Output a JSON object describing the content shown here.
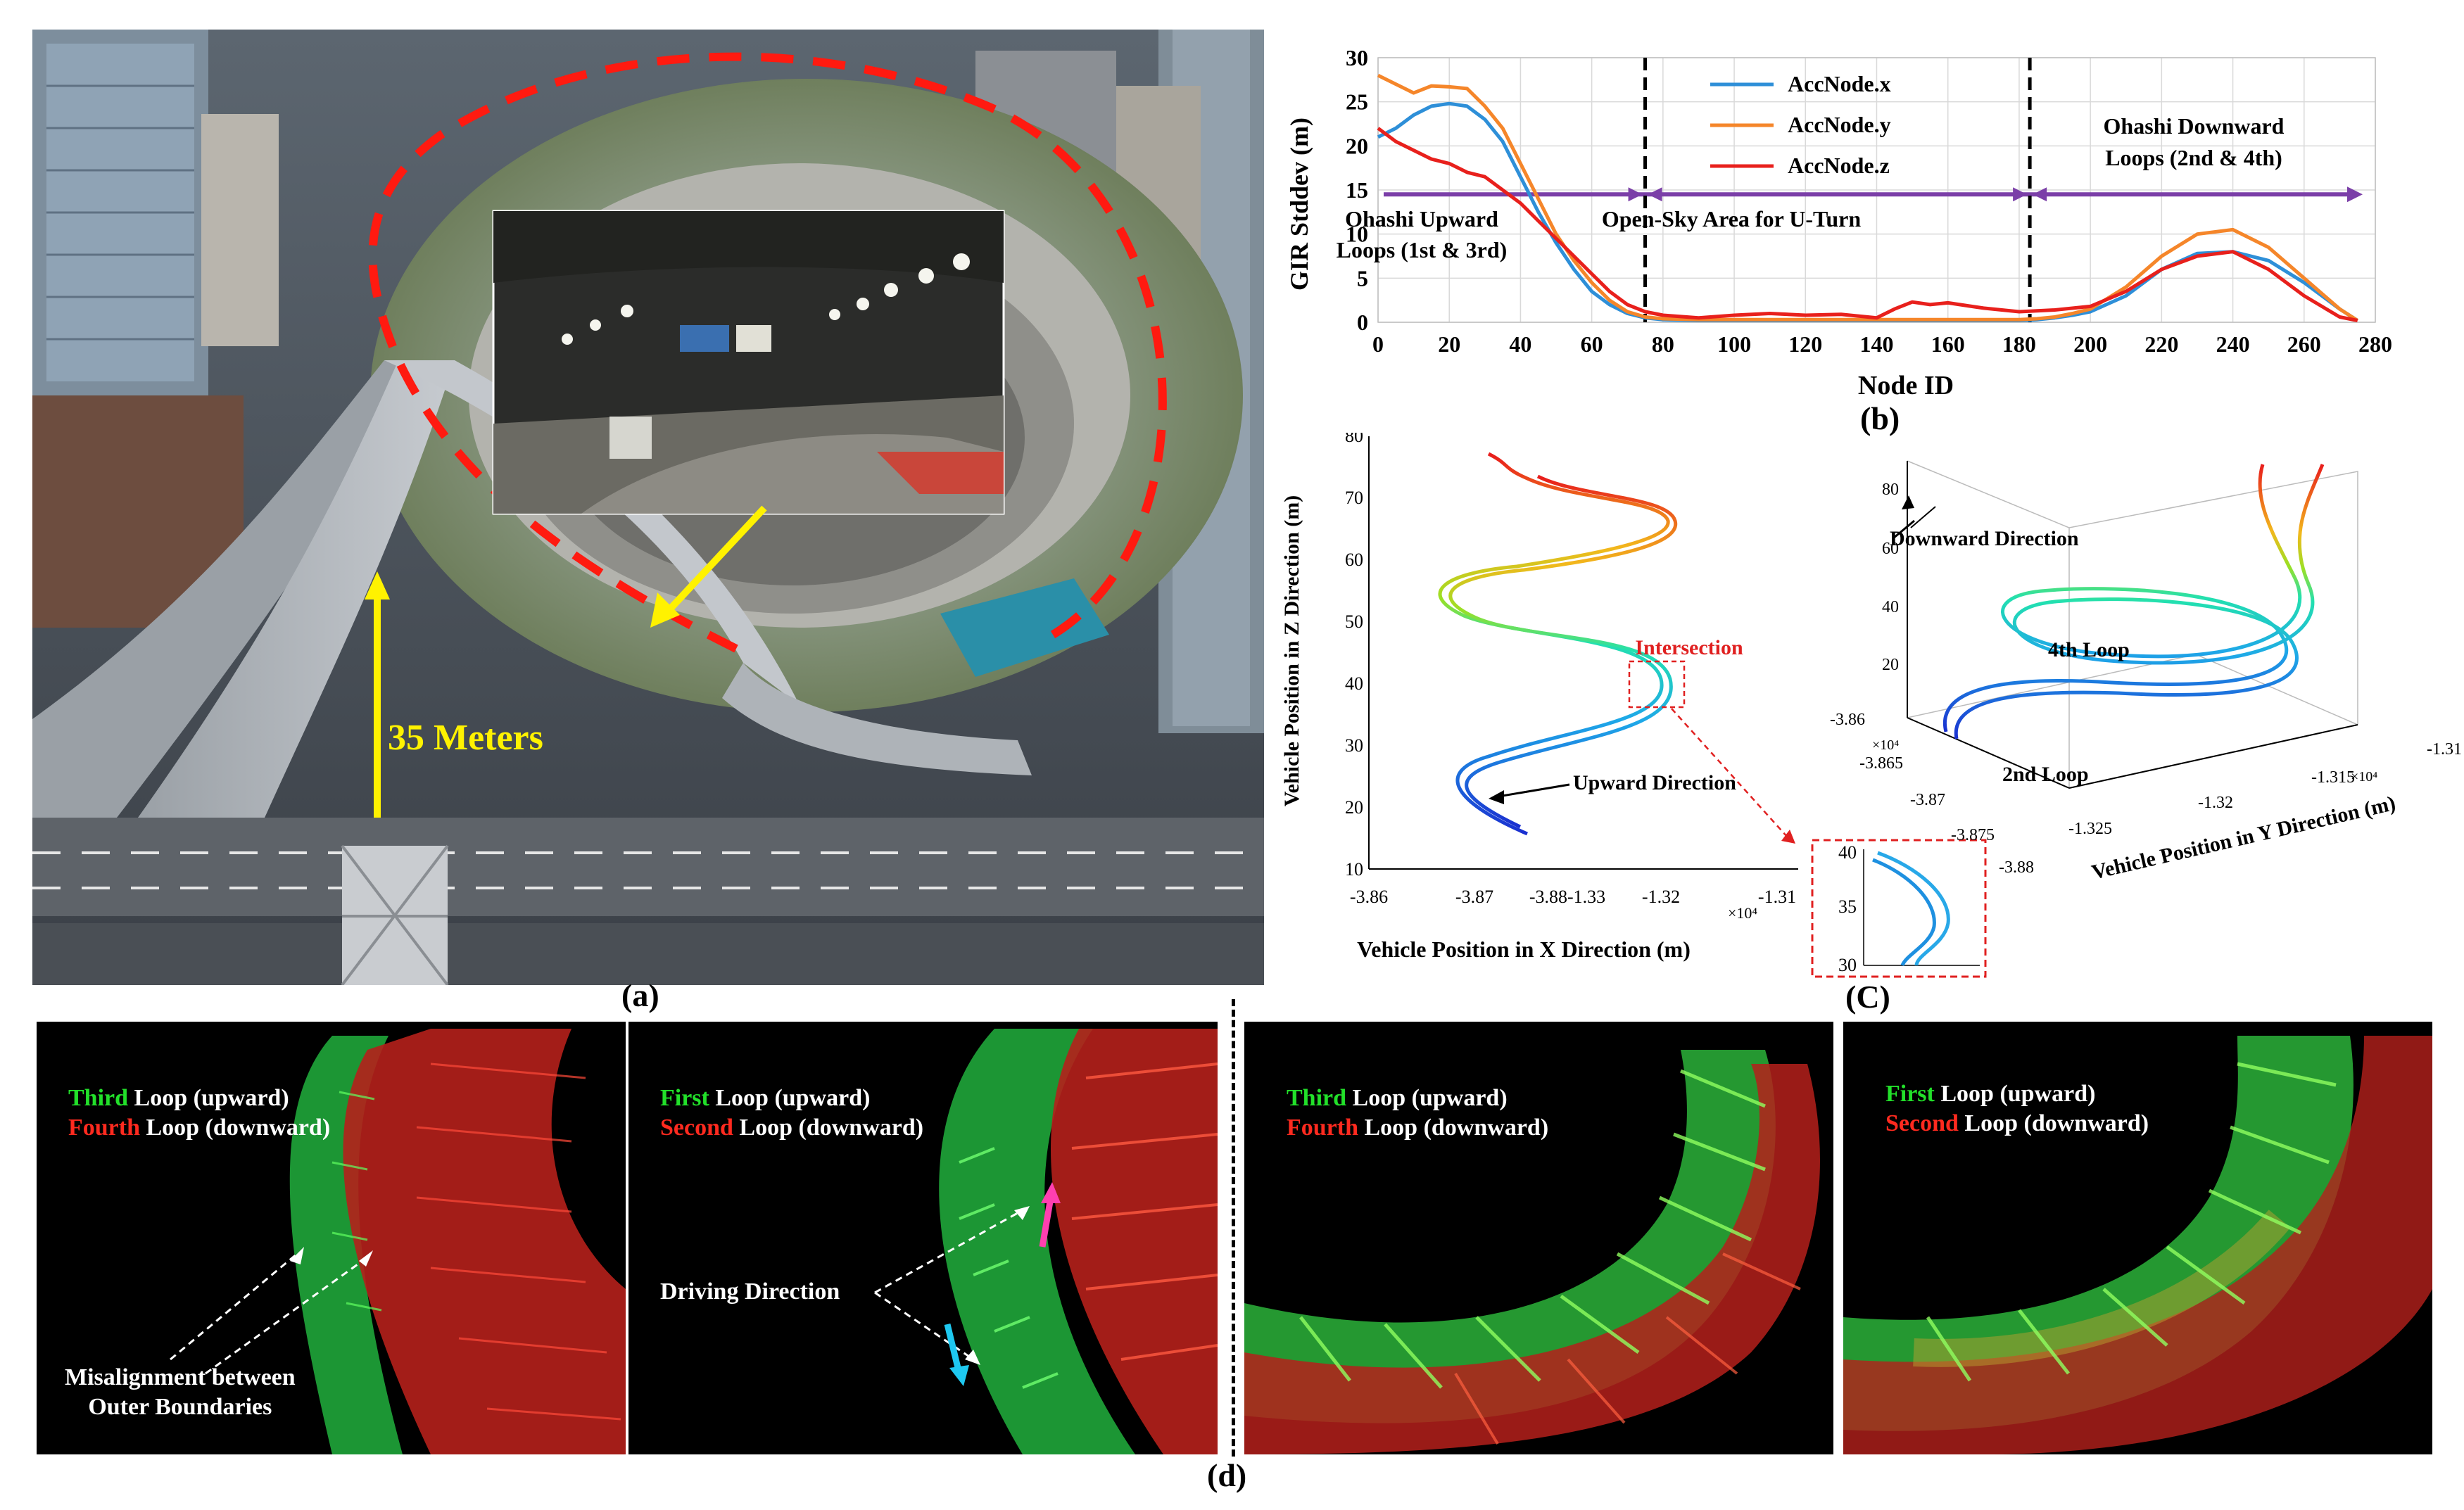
{
  "panel_a": {
    "label": "(a)",
    "height_label": "35 Meters"
  },
  "panel_b": {
    "label": "(b)"
  },
  "panel_c": {
    "label": "(C)",
    "left": {
      "ylabel": "Vehicle Position in Z Direction (m)",
      "xlabel": "Vehicle Position in X Direction (m)",
      "yticks": [
        "10",
        "20",
        "30",
        "40",
        "50",
        "60",
        "70",
        "80"
      ],
      "xticks": [
        "-3.86",
        "-3.87",
        "-3.88-1.33",
        "-1.32",
        "-1.31"
      ],
      "xexp": "×10⁴",
      "intersection": "Intersection",
      "upward": "Upward Direction",
      "inset_yticks": [
        "30",
        "35",
        "40"
      ]
    },
    "right": {
      "zticks": [
        "20",
        "40",
        "60",
        "80"
      ],
      "xticks": [
        "-3.86",
        "-3.865",
        "-3.87",
        "-3.875",
        "-3.88"
      ],
      "xexp": "×10⁴",
      "yticks": [
        "-1.325",
        "-1.32",
        "-1.315",
        "-1.31"
      ],
      "yexp": "×10⁴",
      "ylabel": "Vehicle Position in Y Direction (m)",
      "downward": "Downward Direction",
      "loop4": "4th Loop",
      "loop2": "2nd Loop"
    }
  },
  "panel_d": {
    "label": "(d)",
    "views": [
      {
        "green_word": "Third",
        "green_rest": " Loop (upward)",
        "red_word": "Fourth",
        "red_rest": " Loop (downward)",
        "note1": "Misalignment between",
        "note2": "Outer Boundaries"
      },
      {
        "green_word": "First",
        "green_rest": " Loop (upward)",
        "red_word": "Second",
        "red_rest": " Loop (downward)",
        "note1": "Driving Direction"
      },
      {
        "green_word": "Third",
        "green_rest": " Loop (upward)",
        "red_word": "Fourth",
        "red_rest": " Loop (downward)"
      },
      {
        "green_word": "First",
        "green_rest": " Loop (upward)",
        "red_word": "Second",
        "red_rest": " Loop (downward)"
      }
    ]
  },
  "chart_data": {
    "type": "line",
    "title": "",
    "xlabel": "Node  ID",
    "ylabel": "GIR  Stddev  (m)",
    "xlim": [
      0,
      280
    ],
    "ylim": [
      0,
      30
    ],
    "xticks": [
      0,
      20,
      40,
      60,
      80,
      100,
      120,
      140,
      160,
      180,
      200,
      220,
      240,
      260,
      280
    ],
    "yticks": [
      0,
      5,
      10,
      15,
      20,
      25,
      30
    ],
    "legend": [
      "AccNode.x",
      "AccNode.y",
      "AccNode.z"
    ],
    "series": [
      {
        "name": "AccNode.x",
        "color": "#2e8fd8",
        "x": [
          0,
          5,
          10,
          15,
          20,
          25,
          30,
          35,
          40,
          45,
          50,
          55,
          60,
          65,
          70,
          75,
          80,
          90,
          100,
          120,
          140,
          160,
          180,
          185,
          190,
          195,
          200,
          210,
          220,
          230,
          240,
          250,
          260,
          270,
          275
        ],
        "y": [
          21,
          22,
          23.5,
          24.5,
          24.8,
          24.5,
          23,
          20.5,
          16.5,
          12.5,
          9,
          6,
          3.5,
          2,
          1,
          0.5,
          0.3,
          0.2,
          0.2,
          0.2,
          0.2,
          0.2,
          0.2,
          0.3,
          0.5,
          0.8,
          1.2,
          3,
          6,
          7.8,
          8,
          7,
          4.5,
          1.5,
          0.2
        ]
      },
      {
        "name": "AccNode.y",
        "color": "#f5862a",
        "x": [
          0,
          5,
          10,
          15,
          20,
          25,
          30,
          35,
          40,
          45,
          50,
          55,
          60,
          65,
          70,
          75,
          80,
          90,
          100,
          120,
          140,
          160,
          180,
          185,
          190,
          195,
          200,
          210,
          220,
          230,
          240,
          250,
          260,
          270,
          275
        ],
        "y": [
          28,
          27,
          26,
          26.8,
          26.7,
          26.5,
          24.5,
          22,
          18,
          14,
          10,
          7,
          4.5,
          2.5,
          1.2,
          0.6,
          0.4,
          0.3,
          0.3,
          0.3,
          0.3,
          0.3,
          0.3,
          0.4,
          0.6,
          1,
          1.5,
          4,
          7.5,
          10,
          10.5,
          8.5,
          5,
          1.5,
          0.2
        ]
      },
      {
        "name": "AccNode.z",
        "color": "#e8201c",
        "x": [
          0,
          5,
          10,
          15,
          20,
          25,
          30,
          35,
          40,
          45,
          50,
          55,
          60,
          65,
          70,
          75,
          80,
          90,
          100,
          110,
          120,
          130,
          140,
          145,
          150,
          155,
          160,
          170,
          180,
          190,
          200,
          210,
          220,
          230,
          240,
          250,
          260,
          270,
          275
        ],
        "y": [
          22,
          20.5,
          19.5,
          18.5,
          18,
          17,
          16.5,
          15,
          13.5,
          11.5,
          9.5,
          7.5,
          5.5,
          3.5,
          2,
          1.2,
          0.8,
          0.5,
          0.8,
          1,
          0.8,
          0.9,
          0.5,
          1.5,
          2.3,
          2,
          2.2,
          1.6,
          1.2,
          1.4,
          1.8,
          3.5,
          6,
          7.5,
          8,
          6,
          3,
          0.6,
          0.2
        ]
      }
    ],
    "annotations": [
      {
        "text1": "Ohashi Upward",
        "text2": "Loops (1st & 3rd)"
      },
      {
        "text1": "Open-Sky Area for U-Turn"
      },
      {
        "text1": "Ohashi Downward",
        "text2": "Loops (2nd & 4th)"
      }
    ],
    "dividers": [
      75,
      183
    ],
    "band_y": 14.5
  }
}
